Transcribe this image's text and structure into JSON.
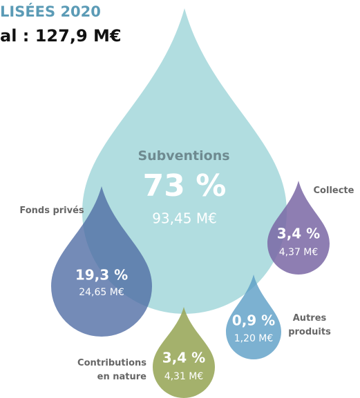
{
  "chart_data": {
    "type": "drop",
    "title": "LISÉES 2020",
    "subtitle": "al : 127,9 M€",
    "categories": [
      "Subventions",
      "Fonds privés",
      "Collecte",
      "Autres produits",
      "Contributions en nature"
    ],
    "values": [
      73,
      19.3,
      3.4,
      0.9,
      3.4
    ],
    "value_labels": [
      "73 %",
      "19,3 %",
      "3,4 %",
      "0,9 %",
      "3,4 %"
    ],
    "amounts": [
      93.45,
      24.65,
      4.37,
      1.2,
      4.31
    ],
    "amount_labels": [
      "93,45 M€",
      "24,65 M€",
      "4,37 M€",
      "1,20 M€",
      "4,31 M€"
    ],
    "colors": [
      "#a9d9dd",
      "#4d6aa3",
      "#7a67a5",
      "#5b9dc6",
      "#9aa85c"
    ]
  }
}
